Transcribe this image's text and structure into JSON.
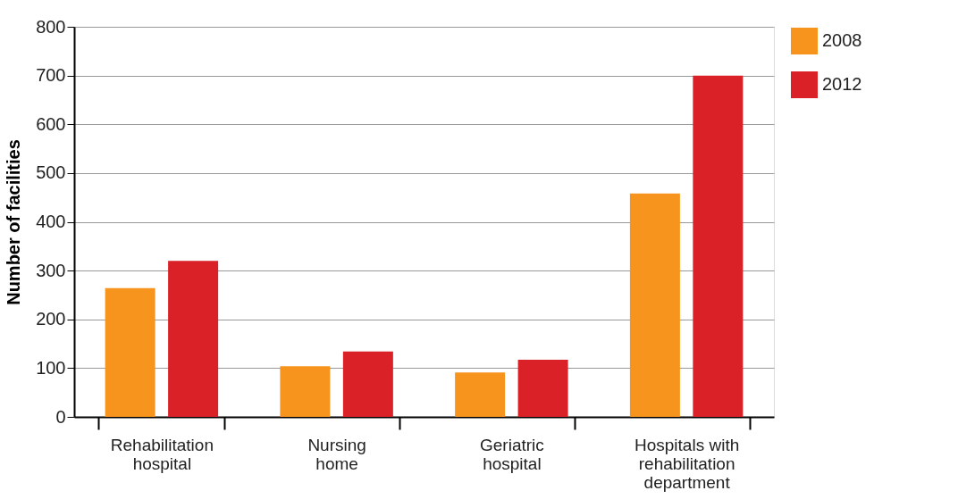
{
  "chart_data": {
    "type": "bar",
    "ylabel": "Number of facilities",
    "categories": [
      "Rehabilitation hospital",
      "Nursing home",
      "Geriatric hospital",
      "Hospitals with rehabilitation department"
    ],
    "series": [
      {
        "name": "2008",
        "color": "#f7941d",
        "values": [
          264,
          104,
          91,
          458
        ]
      },
      {
        "name": "2012",
        "color": "#da2128",
        "values": [
          320,
          134,
          117,
          700
        ]
      }
    ],
    "ylim": [
      0,
      800
    ],
    "yticks": [
      0,
      100,
      200,
      300,
      400,
      500,
      600,
      700,
      800
    ],
    "grid": "y",
    "legend": "right"
  }
}
